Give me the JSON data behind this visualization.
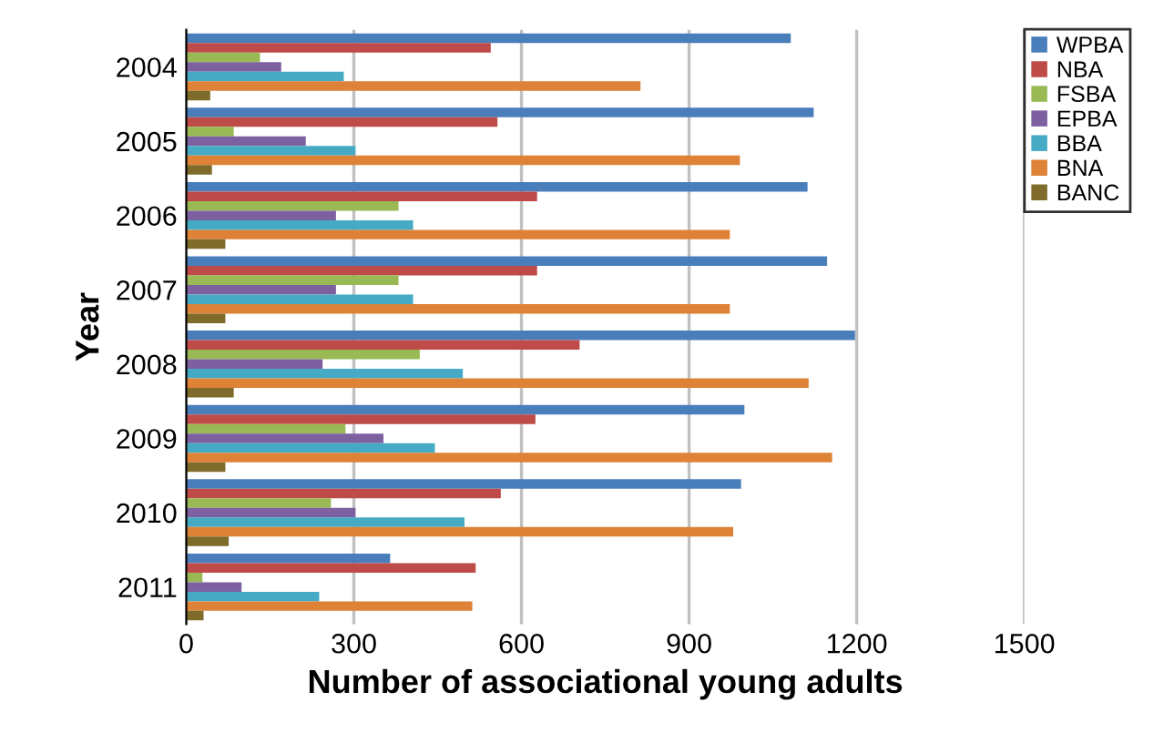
{
  "chart_data": {
    "type": "bar",
    "orientation": "horizontal",
    "xlabel": "Number of associational young adults",
    "ylabel": "Year",
    "categories": [
      "2004",
      "2005",
      "2006",
      "2007",
      "2008",
      "2009",
      "2010",
      "2011"
    ],
    "series": [
      {
        "name": "WPBA",
        "color": "#4a7ebb",
        "values": [
          1082,
          1123,
          1112,
          1147,
          1197,
          999,
          993,
          365
        ]
      },
      {
        "name": "NBA",
        "color": "#be4b48",
        "values": [
          545,
          557,
          628,
          628,
          704,
          625,
          563,
          518
        ]
      },
      {
        "name": "FSBA",
        "color": "#98b954",
        "values": [
          132,
          85,
          380,
          380,
          418,
          285,
          259,
          29
        ]
      },
      {
        "name": "EPBA",
        "color": "#7d60a0",
        "values": [
          170,
          214,
          268,
          268,
          244,
          353,
          303,
          99
        ]
      },
      {
        "name": "BBA",
        "color": "#46aac5",
        "values": [
          282,
          303,
          406,
          406,
          495,
          445,
          498,
          238
        ]
      },
      {
        "name": "BNA",
        "color": "#dd8236",
        "values": [
          813,
          991,
          973,
          973,
          1114,
          1156,
          979,
          512
        ]
      },
      {
        "name": "BANC",
        "color": "#7f6b2a",
        "values": [
          43,
          46,
          70,
          70,
          85,
          70,
          76,
          31
        ]
      }
    ],
    "xlim": [
      0,
      1500
    ],
    "xticks": [
      0,
      300,
      600,
      900,
      1200,
      1500
    ],
    "grid": "x",
    "legend": "top right"
  }
}
